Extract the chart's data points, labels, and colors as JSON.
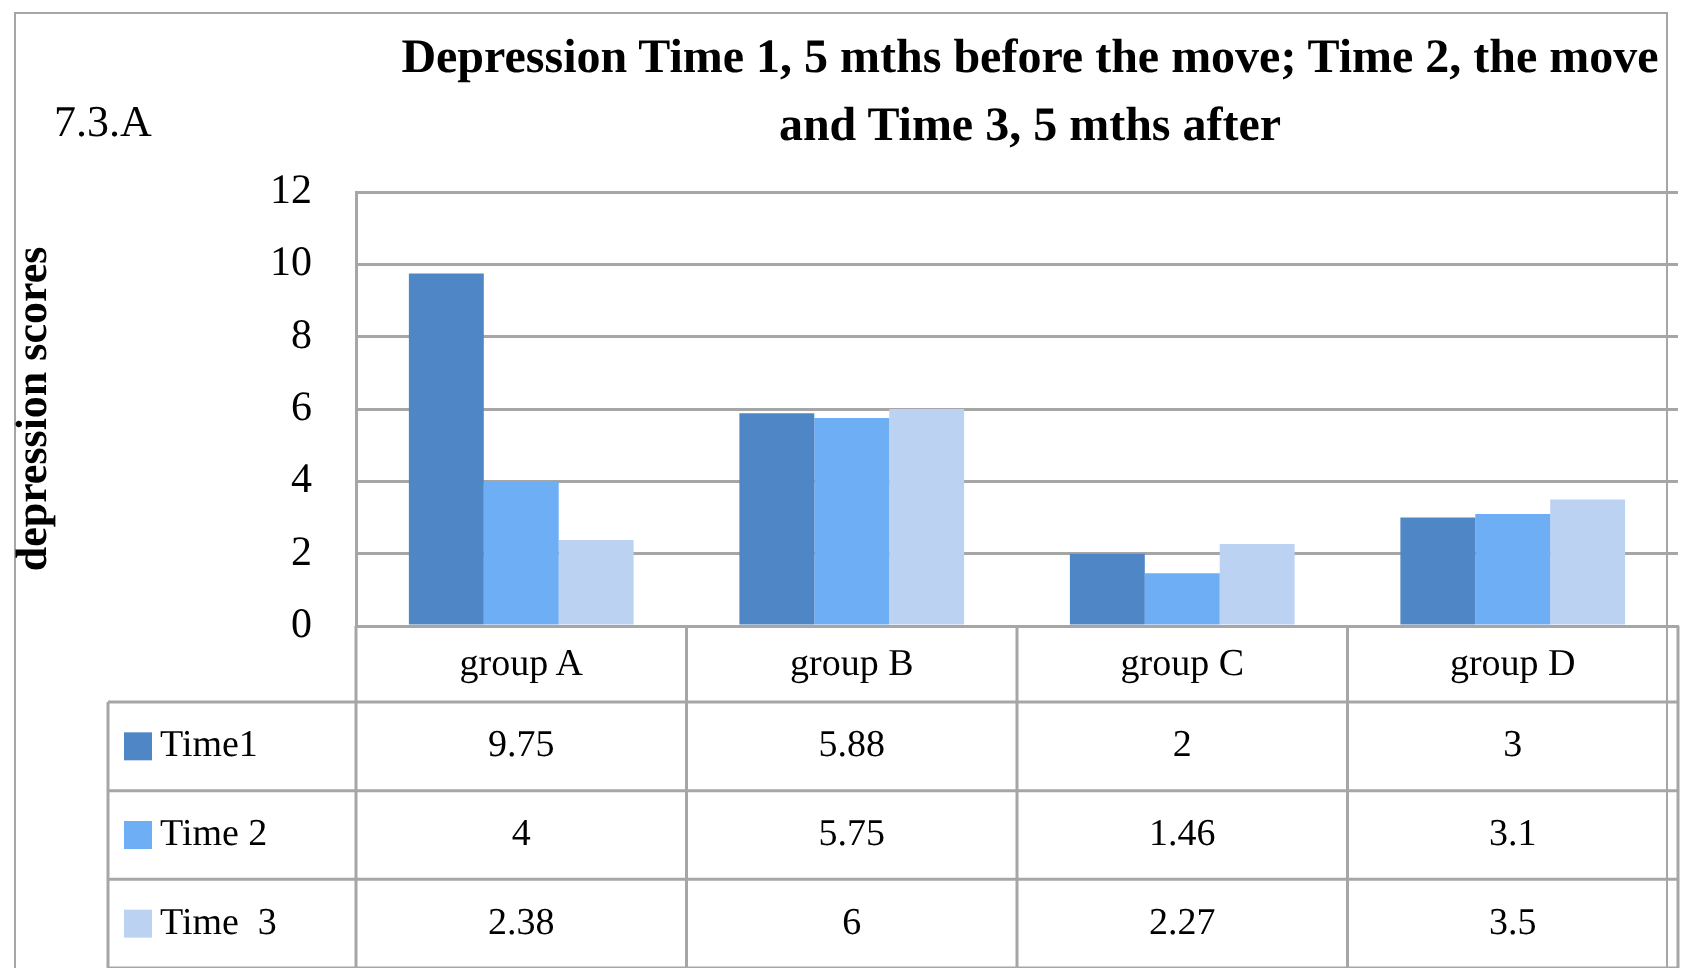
{
  "chart_data": {
    "type": "bar",
    "title": "Depression Time 1, 5 mths before the move; Time 2, the move and Time 3, 5 mths after",
    "ylabel": "depression scores",
    "annotations": [
      "7.3.A"
    ],
    "categories": [
      "group A",
      "group B",
      "group C",
      "group D"
    ],
    "series": [
      {
        "name": "Time1",
        "color": "#4f86c6",
        "values": [
          9.75,
          5.88,
          2,
          3
        ]
      },
      {
        "name": "Time 2",
        "color": "#6eaef5",
        "values": [
          4,
          5.75,
          1.46,
          3.1
        ]
      },
      {
        "name": "Time  3",
        "color": "#bcd2f3",
        "values": [
          2.38,
          6,
          2.27,
          3.5
        ]
      }
    ],
    "ylim": [
      0,
      12
    ],
    "yticks": [
      0,
      2,
      4,
      6,
      8,
      10,
      12
    ],
    "grid": "y",
    "legend": "bottom left",
    "data_labels": true
  }
}
